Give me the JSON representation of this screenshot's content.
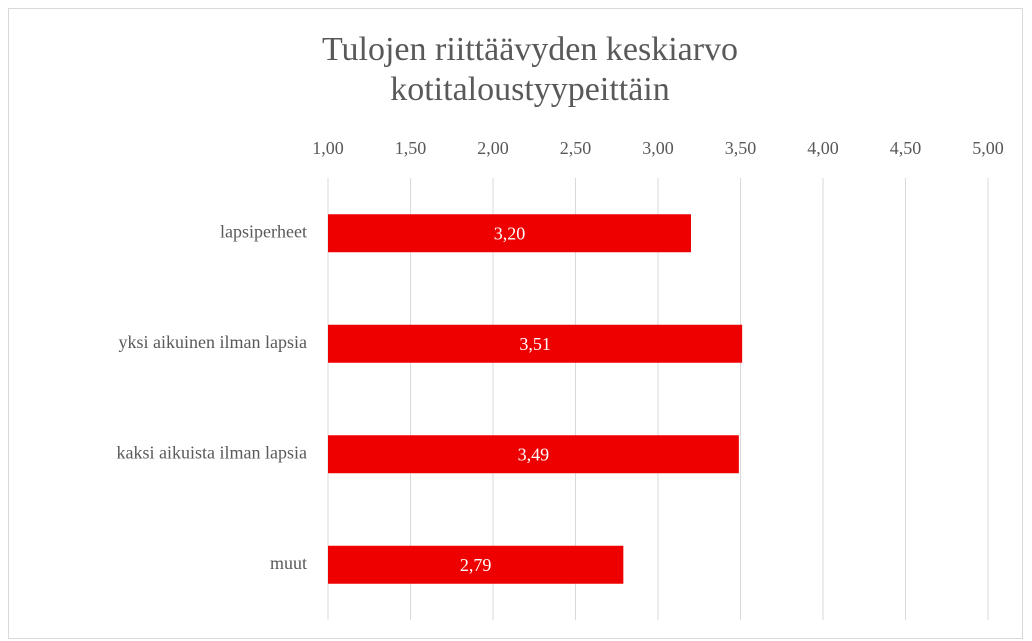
{
  "chart_data": {
    "type": "bar",
    "orientation": "horizontal",
    "title": "Tulojen riittäävyden keskiarvo kotitaloustyypeittäin",
    "categories": [
      "lapsiperheet",
      "yksi aikuinen ilman lapsia",
      "kaksi aikuista ilman lapsia",
      "muut"
    ],
    "values": [
      3.2,
      3.51,
      3.49,
      2.79
    ],
    "value_labels": [
      "3,20",
      "3,51",
      "3,49",
      "2,79"
    ],
    "color": "#ee0000",
    "xlim": [
      1,
      5
    ],
    "xticks": [
      {
        "value": 1,
        "label": "1,00"
      },
      {
        "value": 1.5,
        "label": "1,50"
      },
      {
        "value": 2,
        "label": "2,00"
      },
      {
        "value": 2.5,
        "label": "2,50"
      },
      {
        "value": 3,
        "label": "3,00"
      },
      {
        "value": 3.5,
        "label": "3,50"
      },
      {
        "value": 4,
        "label": "4,00"
      },
      {
        "value": 4.5,
        "label": "4,50"
      },
      {
        "value": 5,
        "label": "5,00"
      }
    ],
    "grid": true
  }
}
